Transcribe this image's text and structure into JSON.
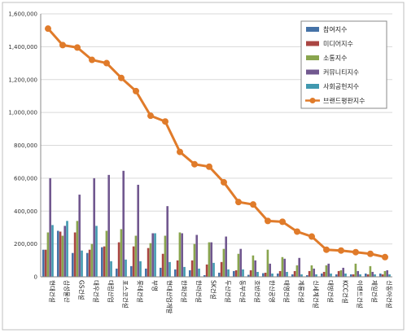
{
  "chart_data": {
    "type": "bar",
    "title": "",
    "xlabel": "",
    "ylabel": "",
    "ylim": [
      0,
      1600000
    ],
    "yticks": [
      0,
      200000,
      400000,
      600000,
      800000,
      1000000,
      1200000,
      1400000,
      1600000
    ],
    "ytick_labels": [
      "0",
      "200,000",
      "400,000",
      "600,000",
      "800,000",
      "1,000,000",
      "1,200,000",
      "1,400,000",
      "1,600,000"
    ],
    "grid": true,
    "legend_position": "top-right",
    "categories": [
      "현대건설",
      "삼성물산",
      "GS건설",
      "대우건설",
      "대림산업",
      "포스코건설",
      "롯데건설",
      "부영",
      "현대산업개발",
      "한화건설",
      "한라건설",
      "SK건설",
      "두산건설",
      "동부건설",
      "호반건설",
      "한신공영",
      "태영건설",
      "계룡건설",
      "신세계건설",
      "대방건설",
      "KCC건설",
      "이랜드건설",
      "제일건설",
      "신동아건설"
    ],
    "series": [
      {
        "name": "참여지수",
        "type": "bar",
        "color": "#4572a7",
        "values": [
          165000,
          280000,
          145000,
          145000,
          180000,
          50000,
          65000,
          50000,
          55000,
          45000,
          40000,
          10000,
          25000,
          35000,
          12000,
          22000,
          20000,
          15000,
          10000,
          20000,
          15000,
          15000,
          20000,
          20000
        ]
      },
      {
        "name": "미디어지수",
        "type": "bar",
        "color": "#aa4643",
        "values": [
          165000,
          275000,
          270000,
          165000,
          185000,
          210000,
          185000,
          175000,
          140000,
          100000,
          100000,
          75000,
          90000,
          40000,
          40000,
          25000,
          35000,
          35000,
          35000,
          30000,
          35000,
          15000,
          15000,
          15000
        ]
      },
      {
        "name": "소통지수",
        "type": "bar",
        "color": "#89a54e",
        "values": [
          270000,
          250000,
          340000,
          200000,
          280000,
          290000,
          250000,
          205000,
          250000,
          270000,
          200000,
          210000,
          170000,
          140000,
          130000,
          165000,
          120000,
          70000,
          70000,
          70000,
          40000,
          80000,
          65000,
          35000
        ]
      },
      {
        "name": "커뮤니티지수",
        "type": "bar",
        "color": "#71588f",
        "values": [
          600000,
          310000,
          500000,
          600000,
          620000,
          645000,
          560000,
          265000,
          430000,
          265000,
          255000,
          210000,
          245000,
          170000,
          100000,
          80000,
          110000,
          115000,
          50000,
          80000,
          55000,
          35000,
          30000,
          40000
        ]
      },
      {
        "name": "사회공헌지수",
        "type": "bar",
        "color": "#4198af",
        "values": [
          315000,
          340000,
          160000,
          310000,
          95000,
          105000,
          95000,
          265000,
          90000,
          60000,
          50000,
          85000,
          45000,
          45000,
          30000,
          20000,
          30000,
          15000,
          15000,
          20000,
          20000,
          15000,
          15000,
          15000
        ]
      },
      {
        "name": "브랜드평판지수",
        "type": "line",
        "color": "#e07b2a",
        "values": [
          1510000,
          1410000,
          1395000,
          1320000,
          1300000,
          1210000,
          1130000,
          980000,
          945000,
          760000,
          685000,
          670000,
          575000,
          455000,
          440000,
          340000,
          335000,
          275000,
          245000,
          165000,
          160000,
          150000,
          140000,
          120000
        ]
      }
    ]
  }
}
